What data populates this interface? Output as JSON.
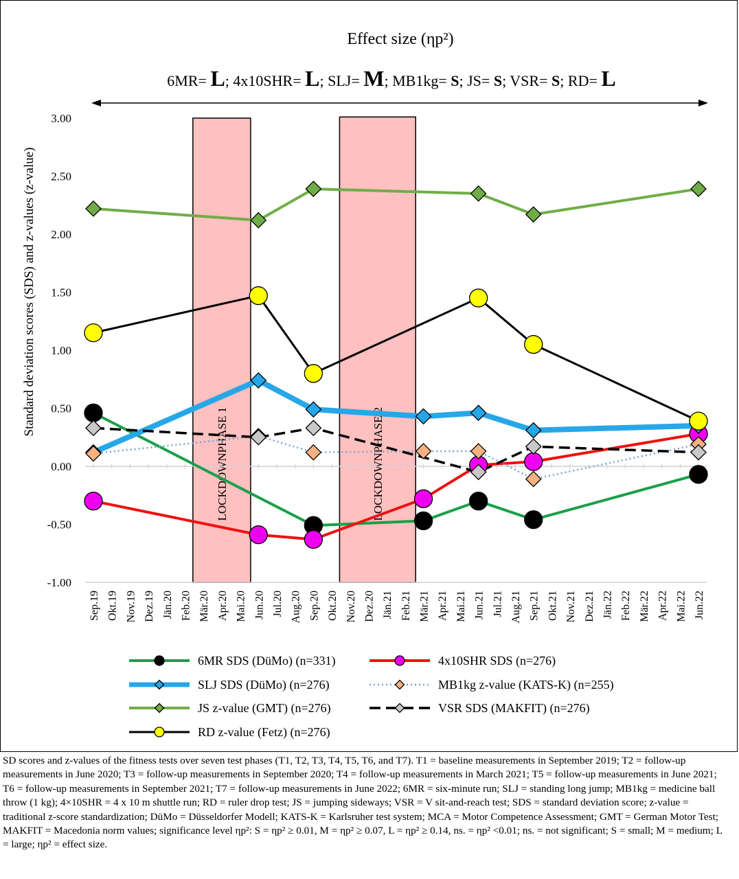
{
  "effect_title": "Effect size (ηp²)",
  "effect_items": [
    {
      "label": "6MR= ",
      "size": "L",
      "sep": "; "
    },
    {
      "label": "4x10SHR= ",
      "size": "L",
      "sep": "; "
    },
    {
      "label": "SLJ= ",
      "size": "M",
      "sep": "; "
    },
    {
      "label": "MB1kg= ",
      "size": "S",
      "sep": "; "
    },
    {
      "label": "JS= ",
      "size": "S",
      "sep": "; "
    },
    {
      "label": "VSR= ",
      "size": "S",
      "sep": "; "
    },
    {
      "label": "RD= ",
      "size": "L",
      "sep": ""
    }
  ],
  "caption": "SD scores and z-values of the fitness tests over seven test phases (T1, T2, T3, T4, T5, T6, and T7). T1 = baseline measurements in September 2019; T2 = follow-up measurements in June 2020; T3 = follow-up measurements in September 2020; T4 = follow-up measurements in March 2021; T5 = follow-up measurements in June 2021; T6 = follow-up measurements in September 2021; T7 = follow-up measurements in June 2022; 6MR = six-minute run; SLJ = standing long jump; MB1kg = medicine ball throw (1 kg); 4×10SHR = 4 x 10 m shuttle run; RD = ruler drop test; JS = jumping sideways; VSR = V sit-and-reach test; SDS = standard deviation score; z-value = traditional z-score standardization; DüMo = Düsseldorfer Modell; KATS-K = Karlsruher test system; MCA = Motor Competence Assessment; GMT = German Motor Test; MAKFIT = Macedonia norm values; significance level ηp²: S = ηp² ≥ 0.01, M = ηp² ≥ 0.07, L = ηp² ≥ 0.14, ns. = ηp² <0.01; ns. = not significant; S = small; M = medium; L = large; ηp² = effect size.",
  "chart_data": {
    "type": "line",
    "ylabel": "Standard deviation scores (SDS) and z-values (z-value)",
    "xlabel": "",
    "ylim": [
      -1.0,
      3.0
    ],
    "y_ticks": [
      -1.0,
      -0.5,
      0.0,
      0.5,
      1.0,
      1.5,
      2.0,
      2.5,
      3.0
    ],
    "y_tick_labels": [
      "-1.00",
      "-0.50",
      "0.00",
      "0.50",
      "1.00",
      "1.50",
      "2.00",
      "2.50",
      "3.00"
    ],
    "categories": [
      "Sep.19",
      "Okt.19",
      "Nov.19",
      "Dez.19",
      "Jän.20",
      "Feb.20",
      "Mär.20",
      "Apr.20",
      "Mai.20",
      "Jun.20",
      "Jul.20",
      "Aug.20",
      "Sep.20",
      "Okt.20",
      "Nov.20",
      "Dez.20",
      "Jän.21",
      "Feb.21",
      "Mär.21",
      "Apr.21",
      "Mai.21",
      "Jun.21",
      "Jul.21",
      "Aug.21",
      "Sep.21",
      "Okt.21",
      "Nov.21",
      "Dez.21",
      "Jän.22",
      "Feb.22",
      "Mär.22",
      "Apr.22",
      "Mai.22",
      "Jun.22"
    ],
    "shaded_periods": [
      {
        "label": "LOCKDOWNPHASE 1",
        "start": "Mär.20",
        "end": "Mai.20",
        "ytop": 3.0,
        "color": "#ffc0c0"
      },
      {
        "label": "LOCKDOWNPHASE 2",
        "start": "Nov.20",
        "end": "Feb.21",
        "ytop": 3.01,
        "color": "#ffc0c0"
      }
    ],
    "series": [
      {
        "name": "6MR SDS (DüMo) (n=331)",
        "line_color": "#1aa04a",
        "line_style": "solid",
        "line_width": 4,
        "marker": "circle",
        "marker_fill": "#000000",
        "marker_size": 26,
        "x": [
          "Sep.19",
          "Sep.20",
          "Mär.21",
          "Jun.21",
          "Sep.21",
          "Jun.22"
        ],
        "values": [
          0.46,
          -0.51,
          -0.47,
          -0.3,
          -0.46,
          -0.07
        ]
      },
      {
        "name": "4x10SHR SDS (n=276)",
        "line_color": "#ee1111",
        "line_style": "solid",
        "line_width": 4,
        "marker": "circle",
        "marker_fill": "#ee00ee",
        "marker_size": 26,
        "x": [
          "Sep.19",
          "Jun.20",
          "Sep.20",
          "Mär.21",
          "Jun.21",
          "Sep.21",
          "Jun.22"
        ],
        "values": [
          -0.3,
          -0.59,
          -0.63,
          -0.28,
          0.01,
          0.04,
          0.28
        ]
      },
      {
        "name": "SLJ SDS (DüMo) (n=276)",
        "line_color": "#27a7e8",
        "line_style": "solid",
        "line_width": 8,
        "marker": "diamond",
        "marker_fill": "#27a7e8",
        "marker_size": 22,
        "x": [
          "Sep.19",
          "Jun.20",
          "Sep.20",
          "Mär.21",
          "Jun.21",
          "Sep.21",
          "Jun.22"
        ],
        "values": [
          0.12,
          0.74,
          0.49,
          0.43,
          0.46,
          0.31,
          0.35
        ]
      },
      {
        "name": "MB1kg z-value (KATS-K) (n=255)",
        "line_color": "#6fa3d6",
        "line_style": "dotted",
        "line_width": 2.5,
        "marker": "diamond",
        "marker_fill": "#f5b183",
        "marker_size": 22,
        "x": [
          "Sep.19",
          "Jun.20",
          "Sep.20",
          "Mär.21",
          "Jun.21",
          "Sep.21",
          "Jun.22"
        ],
        "values": [
          0.11,
          0.26,
          0.12,
          0.13,
          0.13,
          -0.11,
          0.19
        ]
      },
      {
        "name": "JS z-value (GMT) (n=276)",
        "line_color": "#70ad47",
        "line_style": "solid",
        "line_width": 4,
        "marker": "diamond",
        "marker_fill": "#70ad47",
        "marker_size": 22,
        "x": [
          "Sep.19",
          "Jun.20",
          "Sep.20",
          "Jun.21",
          "Sep.21",
          "Jun.22"
        ],
        "values": [
          2.22,
          2.12,
          2.39,
          2.35,
          2.17,
          2.39
        ]
      },
      {
        "name": "VSR SDS (MAKFIT) (n=276)",
        "line_color": "#000000",
        "line_style": "dashed",
        "line_width": 3.5,
        "marker": "diamond",
        "marker_fill": "#c8c8c8",
        "marker_size": 22,
        "x": [
          "Sep.19",
          "Jun.20",
          "Sep.20",
          "Jun.21",
          "Sep.21",
          "Jun.22"
        ],
        "values": [
          0.33,
          0.25,
          0.33,
          -0.05,
          0.17,
          0.12
        ]
      },
      {
        "name": "RD z-value (Fetz) (n=276)",
        "line_color": "#000000",
        "line_style": "solid",
        "line_width": 3,
        "marker": "circle",
        "marker_fill": "#ffff00",
        "marker_size": 26,
        "x": [
          "Sep.19",
          "Jun.20",
          "Sep.20",
          "Jun.21",
          "Sep.21",
          "Jun.22"
        ],
        "values": [
          1.15,
          1.47,
          0.8,
          1.45,
          1.05,
          0.39
        ]
      }
    ],
    "legend_position": "bottom",
    "grid": false
  }
}
